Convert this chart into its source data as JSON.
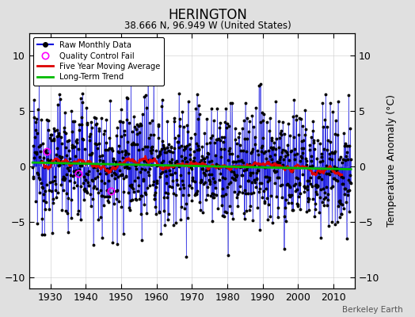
{
  "title": "HERINGTON",
  "subtitle": "38.666 N, 96.949 W (United States)",
  "ylabel": "Temperature Anomaly (°C)",
  "watermark": "Berkeley Earth",
  "start_year": 1925,
  "end_year": 2014,
  "ylim": [
    -11,
    12
  ],
  "yticks": [
    -10,
    -5,
    0,
    5,
    10
  ],
  "xticks": [
    1930,
    1940,
    1950,
    1960,
    1970,
    1980,
    1990,
    2000,
    2010
  ],
  "bg_color": "#e0e0e0",
  "plot_bg_color": "#ffffff",
  "line_color": "#0000dd",
  "ma_color": "#dd0000",
  "trend_color": "#00bb00",
  "qc_color": "#ff00ff",
  "grid_color": "#cccccc",
  "seed": 12345
}
